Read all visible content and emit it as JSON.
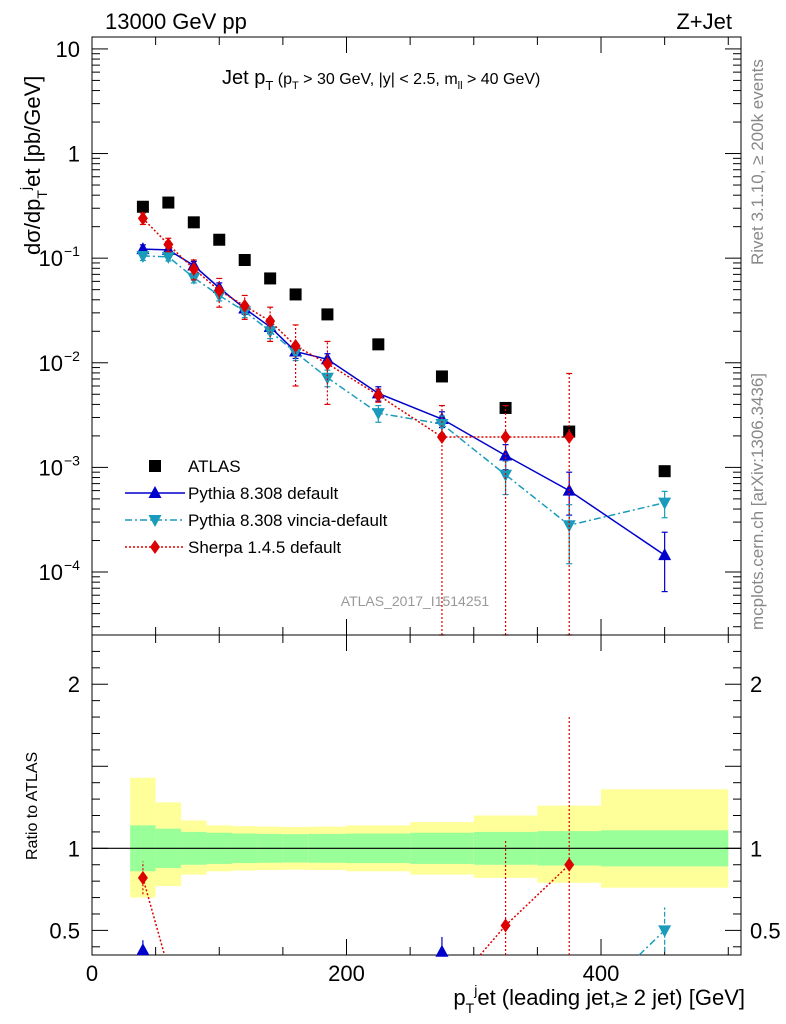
{
  "header": {
    "left": "13000 GeV pp",
    "right": "Z+Jet"
  },
  "side_labels": {
    "top": "Rivet 3.1.10, ≥ 200k events",
    "bottom": "mcplots.cern.ch [arXiv:1306.3436]"
  },
  "watermark": "ATLAS_2017_I1514251",
  "colors": {
    "atlas": "#000000",
    "pythia_default": "#0000cc",
    "pythia_vincia": "#1a9bbb",
    "sherpa": "#dd0000",
    "band_inner": "#99ff99",
    "band_outer": "#ffff99"
  },
  "chart_data": [
    {
      "type": "scatter",
      "panel": "main",
      "title": "Jet p_T (p_T > 30 GeV, |y| < 2.5, m_ll > 40 GeV)",
      "title_parts": {
        "main": "Jet p",
        "main_sub": "T",
        "paren_open": " (p",
        "paren_sub": "T",
        "cut1": " > 30 GeV, |y| < 2.5, m",
        "cut_sub": "ll",
        "cut2": " > 40 GeV)"
      },
      "ylabel": "dσ/dp_T^j et [pb/GeV]",
      "ylabel_parts": {
        "a": "dσ/dp",
        "sub": "T",
        "sup": "j",
        "b": "et [pb/GeV]"
      },
      "xlim": [
        0,
        510
      ],
      "ylim": [
        2.5e-05,
        13
      ],
      "yscale": "log",
      "yticks": [
        {
          "v": 10,
          "label": "10"
        },
        {
          "v": 1,
          "label": "1"
        },
        {
          "v": 0.1,
          "base": "10",
          "exp": "−1"
        },
        {
          "v": 0.01,
          "base": "10",
          "exp": "−2"
        },
        {
          "v": 0.001,
          "base": "10",
          "exp": "−3"
        },
        {
          "v": 0.0001,
          "base": "10",
          "exp": "−4"
        }
      ],
      "legend_position": "lower-left",
      "series": [
        {
          "name": "ATLAS",
          "marker": "square",
          "x": [
            40,
            60,
            80,
            100,
            120,
            140,
            160,
            185,
            225,
            275,
            325,
            375,
            450
          ],
          "y": [
            0.31,
            0.34,
            0.22,
            0.15,
            0.096,
            0.064,
            0.045,
            0.029,
            0.015,
            0.0074,
            0.0037,
            0.0022,
            0.00092
          ]
        },
        {
          "name": "Pythia 8.308 default",
          "marker": "triangle-up",
          "line": "solid",
          "x": [
            40,
            60,
            80,
            100,
            120,
            140,
            160,
            185,
            225,
            275,
            325,
            375,
            450
          ],
          "y": [
            0.122,
            0.12,
            0.085,
            0.052,
            0.033,
            0.022,
            0.0128,
            0.0108,
            0.0051,
            0.0029,
            0.0013,
            0.0006,
            0.000145
          ],
          "err_lo": [
            0.111,
            0.11,
            0.077,
            0.046,
            0.029,
            0.019,
            0.011,
            0.0094,
            0.0043,
            0.0024,
            0.00095,
            0.00035,
            6.5e-05
          ],
          "err_hi": [
            0.134,
            0.131,
            0.093,
            0.058,
            0.037,
            0.025,
            0.0146,
            0.0122,
            0.0059,
            0.0034,
            0.00165,
            0.0009,
            0.00024
          ]
        },
        {
          "name": "Pythia 8.308 vincia-default",
          "marker": "triangle-down",
          "line": "dashdot",
          "x": [
            40,
            60,
            80,
            100,
            120,
            140,
            160,
            185,
            225,
            275,
            325,
            375,
            450
          ],
          "y": [
            0.105,
            0.103,
            0.065,
            0.044,
            0.031,
            0.02,
            0.0125,
            0.0072,
            0.0033,
            0.0026,
            0.00085,
            0.00028,
            0.00046
          ],
          "err_lo": [
            0.095,
            0.094,
            0.058,
            0.039,
            0.027,
            0.017,
            0.0105,
            0.0059,
            0.0027,
            0.0021,
            0.00055,
            0.00012,
            0.00033
          ],
          "err_hi": [
            0.115,
            0.113,
            0.072,
            0.049,
            0.035,
            0.023,
            0.0145,
            0.0085,
            0.0039,
            0.0031,
            0.00115,
            0.00044,
            0.00059
          ]
        },
        {
          "name": "Sherpa 1.4.5 default",
          "marker": "diamond",
          "line": "dotted",
          "x": [
            40,
            60,
            80,
            100,
            120,
            140,
            160,
            185,
            225,
            275,
            325,
            375
          ],
          "y": [
            0.24,
            0.135,
            0.079,
            0.049,
            0.035,
            0.025,
            0.0145,
            0.0098,
            0.0049,
            0.00195,
            0.00195,
            0.00195
          ],
          "err_lo": [
            0.21,
            0.115,
            0.062,
            0.034,
            0.026,
            0.016,
            0.006,
            0.004,
            0.0042,
            2e-05,
            2e-05,
            2e-05
          ],
          "err_hi": [
            0.27,
            0.155,
            0.096,
            0.064,
            0.044,
            0.034,
            0.023,
            0.016,
            0.0056,
            0.0039,
            0.0039,
            0.0079
          ]
        }
      ]
    },
    {
      "type": "scatter",
      "panel": "ratio",
      "title": "",
      "ylabel": "Ratio to ATLAS",
      "xlabel": "p_T^j et (leading jet,≥ 2 jet) [GeV]",
      "xlabel_parts": {
        "a": "p",
        "sub": "T",
        "sup": "j",
        "b": "et (leading jet,≥ 2 jet) [GeV]"
      },
      "xlim": [
        0,
        510
      ],
      "ylim": [
        0.35,
        2.3
      ],
      "yticks": [
        {
          "v": 2,
          "label": "2"
        },
        {
          "v": 1,
          "label": "1"
        },
        {
          "v": 0.5,
          "label": "0.5"
        }
      ],
      "xticks": [
        {
          "v": 0,
          "label": "0"
        },
        {
          "v": 200,
          "label": "200"
        },
        {
          "v": 400,
          "label": "400"
        }
      ],
      "bands": {
        "edges": [
          30,
          50,
          70,
          90,
          110,
          130,
          150,
          170,
          200,
          250,
          300,
          350,
          400,
          500
        ],
        "inner_lo": [
          0.86,
          0.88,
          0.9,
          0.905,
          0.91,
          0.912,
          0.914,
          0.912,
          0.91,
          0.905,
          0.9,
          0.895,
          0.89
        ],
        "inner_hi": [
          1.14,
          1.12,
          1.1,
          1.095,
          1.09,
          1.088,
          1.086,
          1.088,
          1.09,
          1.095,
          1.1,
          1.105,
          1.11
        ],
        "outer_lo": [
          0.7,
          0.77,
          0.84,
          0.86,
          0.865,
          0.868,
          0.87,
          0.868,
          0.86,
          0.84,
          0.82,
          0.79,
          0.76
        ],
        "outer_hi": [
          1.43,
          1.28,
          1.17,
          1.14,
          1.135,
          1.132,
          1.13,
          1.132,
          1.14,
          1.16,
          1.2,
          1.26,
          1.36
        ]
      },
      "series": [
        {
          "name": "Pythia 8.308 default",
          "x": [
            40,
            275
          ],
          "y": [
            0.38,
            0.37
          ],
          "err_lo": [
            0.3,
            0.3
          ],
          "err_hi": [
            0.44,
            0.46
          ]
        },
        {
          "name": "Pythia 8.308 vincia-default",
          "x": [
            450
          ],
          "y": [
            0.5
          ],
          "err_lo": [
            0.37
          ],
          "err_hi": [
            0.64
          ]
        },
        {
          "name": "Sherpa 1.4.5 default",
          "x": [
            40,
            325,
            375
          ],
          "y": [
            0.82,
            0.53,
            0.9
          ],
          "err_lo": [
            0.72,
            0.3,
            0.3
          ],
          "err_hi": [
            0.92,
            1.05,
            1.8
          ]
        }
      ]
    }
  ]
}
